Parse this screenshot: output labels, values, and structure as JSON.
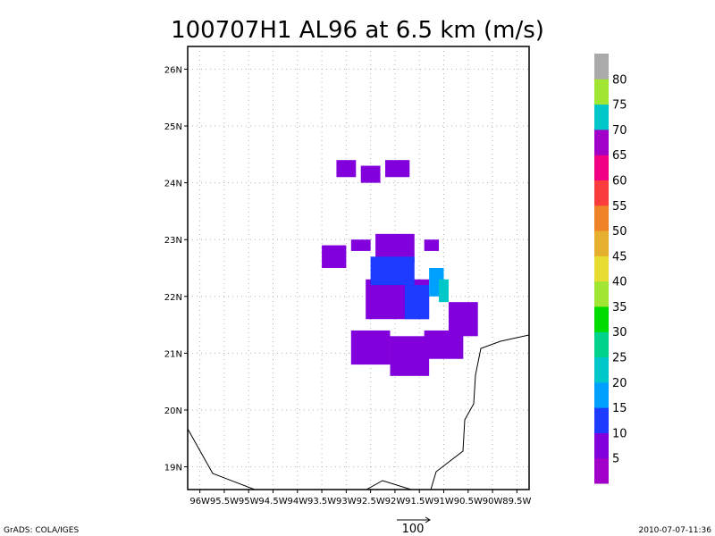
{
  "chart_data": {
    "type": "heatmap",
    "title": "100707H1 AL96 at 6.5 km (m/s)",
    "xlim": [
      -96.25,
      -89.25
    ],
    "ylim": [
      18.6,
      26.4
    ],
    "x_ticks": [
      {
        "value": -96.0,
        "label": "96W"
      },
      {
        "value": -95.5,
        "label": "95.5W"
      },
      {
        "value": -95.0,
        "label": "95W"
      },
      {
        "value": -94.5,
        "label": "94.5W"
      },
      {
        "value": -94.0,
        "label": "94W"
      },
      {
        "value": -93.5,
        "label": "93.5W"
      },
      {
        "value": -93.0,
        "label": "93W"
      },
      {
        "value": -92.5,
        "label": "92.5W"
      },
      {
        "value": -92.0,
        "label": "92W"
      },
      {
        "value": -91.5,
        "label": "91.5W"
      },
      {
        "value": -91.0,
        "label": "91W"
      },
      {
        "value": -90.5,
        "label": "90.5W"
      },
      {
        "value": -90.0,
        "label": "90W"
      },
      {
        "value": -89.5,
        "label": "89.5W"
      }
    ],
    "y_ticks": [
      {
        "value": 19,
        "label": "19N"
      },
      {
        "value": 20,
        "label": "20N"
      },
      {
        "value": 21,
        "label": "21N"
      },
      {
        "value": 22,
        "label": "22N"
      },
      {
        "value": 23,
        "label": "23N"
      },
      {
        "value": 24,
        "label": "24N"
      },
      {
        "value": 25,
        "label": "25N"
      },
      {
        "value": 26,
        "label": "26N"
      }
    ],
    "grid": true,
    "colorbar": {
      "levels": [
        "5",
        "10",
        "15",
        "20",
        "25",
        "30",
        "35",
        "40",
        "45",
        "50",
        "55",
        "60",
        "65",
        "70",
        "75",
        "80"
      ],
      "colors": [
        "#a000c8",
        "#8200dc",
        "#1e3cff",
        "#00a0ff",
        "#00c8c8",
        "#00d28c",
        "#00dc00",
        "#a0e632",
        "#e6dc32",
        "#e6af2d",
        "#f08228",
        "#fa3c3c",
        "#f00082",
        "#a000c8",
        "#00c8c8",
        "#a0e632",
        "#aaaaaa"
      ]
    },
    "regions": [
      {
        "bin": "5-10",
        "lon": [
          -93.2,
          -92.8
        ],
        "lat": [
          24.1,
          24.4
        ]
      },
      {
        "bin": "5-10",
        "lon": [
          -92.7,
          -92.3
        ],
        "lat": [
          24.0,
          24.3
        ]
      },
      {
        "bin": "5-10",
        "lon": [
          -92.2,
          -91.7
        ],
        "lat": [
          24.1,
          24.4
        ]
      },
      {
        "bin": "5-10",
        "lon": [
          -93.5,
          -93.0
        ],
        "lat": [
          22.5,
          22.9
        ]
      },
      {
        "bin": "5-10",
        "lon": [
          -92.9,
          -92.5
        ],
        "lat": [
          22.8,
          23.0
        ]
      },
      {
        "bin": "5-10",
        "lon": [
          -92.4,
          -91.6
        ],
        "lat": [
          22.6,
          23.1
        ]
      },
      {
        "bin": "5-10",
        "lon": [
          -91.4,
          -91.1
        ],
        "lat": [
          22.8,
          23.0
        ]
      },
      {
        "bin": "5-10",
        "lon": [
          -92.6,
          -91.3
        ],
        "lat": [
          21.6,
          22.3
        ]
      },
      {
        "bin": "5-10",
        "lon": [
          -90.9,
          -90.3
        ],
        "lat": [
          21.3,
          21.9
        ]
      },
      {
        "bin": "5-10",
        "lon": [
          -91.4,
          -90.6
        ],
        "lat": [
          20.9,
          21.4
        ]
      },
      {
        "bin": "5-10",
        "lon": [
          -92.9,
          -92.1
        ],
        "lat": [
          20.8,
          21.4
        ]
      },
      {
        "bin": "5-10",
        "lon": [
          -92.1,
          -91.3
        ],
        "lat": [
          20.6,
          21.3
        ]
      },
      {
        "bin": "10-15",
        "lon": [
          -92.5,
          -91.6
        ],
        "lat": [
          22.2,
          22.7
        ]
      },
      {
        "bin": "10-15",
        "lon": [
          -91.8,
          -91.3
        ],
        "lat": [
          21.6,
          22.2
        ]
      },
      {
        "bin": "15-20",
        "lon": [
          -91.3,
          -91.0
        ],
        "lat": [
          22.0,
          22.5
        ]
      },
      {
        "bin": "20-25",
        "lon": [
          -91.1,
          -90.9
        ],
        "lat": [
          21.9,
          22.3
        ]
      }
    ]
  },
  "footer": {
    "left": "GrADS: COLA/IGES",
    "right": "2010-07-07-11:36",
    "vector_scale": "100"
  }
}
